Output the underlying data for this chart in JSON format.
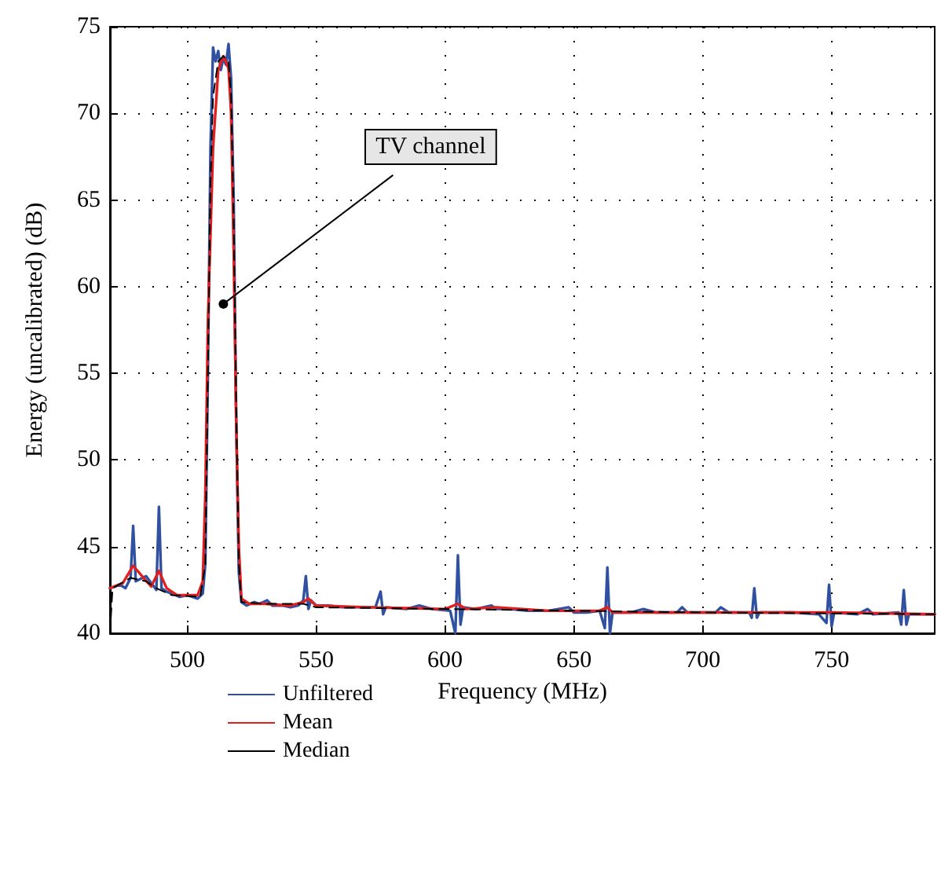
{
  "chart_data": {
    "type": "line",
    "xlabel": "Frequency (MHz)",
    "ylabel": "Energy (uncalibrated) (dB)",
    "xlim": [
      470,
      790
    ],
    "xticks": [
      500,
      550,
      600,
      650,
      700,
      750
    ],
    "ylim": [
      40,
      75
    ],
    "yticks": [
      40,
      45,
      50,
      55,
      60,
      65,
      70,
      75
    ],
    "grid": true,
    "legend": "bottom",
    "marker": "none",
    "annotations": [
      {
        "text": "TV channel",
        "x": 514,
        "y": 59
      }
    ],
    "series": [
      {
        "name": "Unfiltered",
        "color": "#3050a0",
        "line_style": "solid",
        "x": [
          470,
          474,
          476,
          478,
          479,
          480,
          484,
          488,
          489,
          490,
          492,
          494,
          497,
          500,
          504,
          506,
          507,
          508,
          509,
          510,
          511,
          512,
          513,
          514,
          515,
          516,
          517,
          518,
          519,
          520,
          521,
          523,
          526,
          528,
          531,
          533,
          537,
          540,
          543,
          545,
          546,
          547,
          548,
          550,
          555,
          560,
          565,
          573,
          575,
          576,
          577,
          585,
          590,
          595,
          602,
          604,
          605,
          606,
          607,
          612,
          618,
          620,
          625,
          632,
          640,
          648,
          650,
          655,
          660,
          662,
          663,
          664,
          665,
          672,
          677,
          682,
          690,
          692,
          694,
          705,
          707,
          710,
          718,
          719,
          720,
          721,
          722,
          730,
          735,
          745,
          748,
          749,
          750,
          751,
          760,
          764,
          766,
          776,
          777,
          778,
          779,
          780,
          790
        ],
        "values": [
          42.6,
          42.8,
          42.6,
          43.2,
          46.2,
          43.0,
          43.3,
          42.5,
          47.3,
          42.6,
          42.4,
          42.3,
          42.1,
          42.2,
          42.0,
          42.3,
          44,
          55,
          68,
          73.8,
          73.0,
          73.6,
          72.5,
          73.2,
          72.8,
          74.0,
          72,
          65,
          52,
          43.5,
          41.8,
          41.6,
          41.8,
          41.7,
          41.9,
          41.6,
          41.6,
          41.5,
          41.6,
          41.9,
          43.3,
          41.4,
          41.9,
          41.6,
          41.6,
          41.5,
          41.5,
          41.5,
          42.4,
          41.1,
          41.5,
          41.4,
          41.6,
          41.4,
          41.3,
          40.0,
          44.5,
          40.5,
          41.5,
          41.4,
          41.6,
          41.4,
          41.4,
          41.3,
          41.3,
          41.5,
          41.2,
          41.2,
          41.3,
          40.3,
          43.8,
          40.0,
          41.2,
          41.2,
          41.4,
          41.2,
          41.2,
          41.5,
          41.2,
          41.2,
          41.5,
          41.2,
          41.2,
          40.9,
          42.6,
          40.9,
          41.2,
          41.2,
          41.2,
          41.1,
          40.6,
          42.8,
          40.4,
          41.2,
          41.1,
          41.4,
          41.1,
          41.2,
          40.5,
          42.5,
          40.5,
          41.1,
          41.1
        ]
      },
      {
        "name": "Mean",
        "color": "#e02020",
        "line_style": "solid",
        "x": [
          470,
          475,
          479,
          483,
          486,
          489,
          492,
          496,
          504,
          506,
          507,
          508,
          510,
          512,
          514,
          516,
          517,
          518,
          519,
          520,
          521,
          524,
          530,
          540,
          545,
          547,
          550,
          570,
          600,
          605,
          608,
          620,
          640,
          660,
          663,
          665,
          700,
          750,
          790
        ],
        "values": [
          42.6,
          42.9,
          43.9,
          43.2,
          42.7,
          43.6,
          42.6,
          42.2,
          42.2,
          43,
          48,
          58,
          68,
          72.5,
          73.3,
          72.6,
          70,
          62,
          52,
          45,
          42,
          41.7,
          41.7,
          41.6,
          41.8,
          42.0,
          41.6,
          41.5,
          41.4,
          41.7,
          41.4,
          41.5,
          41.3,
          41.3,
          41.5,
          41.2,
          41.2,
          41.2,
          41.1
        ]
      },
      {
        "name": "Median",
        "color": "#000000",
        "line_style": "dashed",
        "x": [
          470,
          471,
          478,
          484,
          488,
          494,
          505,
          507,
          508,
          509,
          510,
          512,
          514,
          516,
          517,
          518,
          519,
          520,
          521,
          530,
          545,
          550,
          600,
          650,
          700,
          790
        ],
        "values": [
          40,
          42.6,
          43.2,
          43.0,
          42.6,
          42.2,
          42.1,
          44,
          55,
          66,
          71,
          73,
          73.3,
          73,
          71,
          64,
          53,
          44,
          41.8,
          41.7,
          41.7,
          41.5,
          41.4,
          41.3,
          41.2,
          41.1
        ]
      }
    ]
  }
}
